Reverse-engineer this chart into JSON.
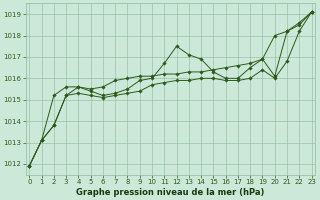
{
  "hours": [
    0,
    1,
    2,
    3,
    4,
    5,
    6,
    7,
    8,
    9,
    10,
    11,
    12,
    13,
    14,
    15,
    16,
    17,
    18,
    19,
    20,
    21,
    22,
    23
  ],
  "line_upper": [
    1011.9,
    1013.1,
    1015.2,
    1015.6,
    1015.6,
    1015.5,
    1015.6,
    1015.9,
    1016.0,
    1016.1,
    1016.1,
    1016.2,
    1016.2,
    1016.3,
    1016.3,
    1016.4,
    1016.5,
    1016.6,
    1016.7,
    1016.9,
    1018.0,
    1018.2,
    1018.6,
    1019.1
  ],
  "line_mid": [
    1011.9,
    1013.1,
    1013.8,
    1015.2,
    1015.6,
    1015.4,
    1015.2,
    1015.3,
    1015.5,
    1015.9,
    1016.0,
    1016.7,
    1017.5,
    1017.1,
    1016.9,
    1016.3,
    1016.0,
    1016.0,
    1016.5,
    1016.9,
    1016.1,
    1018.2,
    1018.5,
    1019.1
  ],
  "line_lower": [
    1011.9,
    1013.1,
    1013.8,
    1015.2,
    1015.3,
    1015.2,
    1015.1,
    1015.2,
    1015.3,
    1015.4,
    1015.7,
    1015.8,
    1015.9,
    1015.9,
    1016.0,
    1016.0,
    1015.9,
    1015.9,
    1016.0,
    1016.4,
    1016.0,
    1016.8,
    1018.2,
    1019.1
  ],
  "yticks": [
    1012,
    1013,
    1014,
    1015,
    1016,
    1017,
    1018,
    1019
  ],
  "xticks": [
    0,
    1,
    2,
    3,
    4,
    5,
    6,
    7,
    8,
    9,
    10,
    11,
    12,
    13,
    14,
    15,
    16,
    17,
    18,
    19,
    20,
    21,
    22,
    23
  ],
  "line_color": "#2d5a1b",
  "bg_color": "#cce8d8",
  "grid_color": "#90b8a0",
  "xlabel": "Graphe pression niveau de la mer (hPa)",
  "xlabel_color": "#1a3a10",
  "ylim_min": 1011.5,
  "ylim_max": 1019.5,
  "xlim_min": -0.3,
  "xlim_max": 23.3,
  "tick_fontsize": 5.0,
  "xlabel_fontsize": 6.0,
  "linewidth": 0.7,
  "markersize": 1.8
}
